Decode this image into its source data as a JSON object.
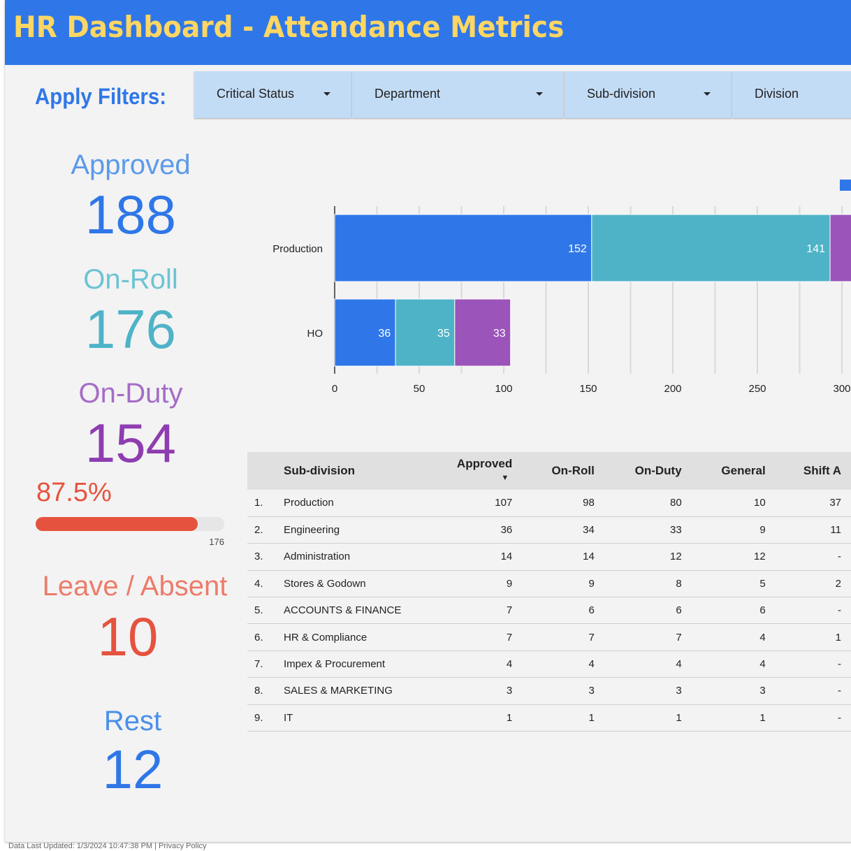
{
  "header": {
    "title": "HR Dashboard - Attendance Metrics"
  },
  "filters": {
    "label": "Apply Filters:",
    "items": [
      {
        "label": "Critical Status"
      },
      {
        "label": "Department"
      },
      {
        "label": "Sub-division"
      },
      {
        "label": "Division"
      }
    ]
  },
  "kpis": {
    "approved": {
      "label": "Approved",
      "value": "188",
      "color": "#5c9ae9",
      "value_color": "#2f77e8"
    },
    "onroll": {
      "label": "On-Roll",
      "value": "176",
      "color": "#6cc4d3",
      "value_color": "#4fb3c8"
    },
    "onduty": {
      "label": "On-Duty",
      "value": "154",
      "color": "#a56cc7",
      "value_color": "#8e3cb0"
    },
    "progress": {
      "percent_label": "87.5%",
      "fraction": 0.875,
      "max_label": "176"
    },
    "leave": {
      "label": "Leave / Absent",
      "value": "10",
      "color": "#ed7b6a",
      "value_color": "#e5533f"
    },
    "rest": {
      "label": "Rest",
      "value": "12",
      "color": "#4a8fe9",
      "value_color": "#2f77e8"
    }
  },
  "chart_data": {
    "type": "bar",
    "orientation": "horizontal",
    "stacked": true,
    "categories": [
      "Production",
      "HO"
    ],
    "series": [
      {
        "color": "#2f77e8",
        "values": [
          152,
          36
        ]
      },
      {
        "color": "#4fb3c8",
        "values": [
          141,
          35
        ]
      },
      {
        "color": "#9b54b9",
        "values": [
          null,
          33
        ]
      }
    ],
    "xticks": [
      "0",
      "50",
      "100",
      "150",
      "200",
      "250",
      "300"
    ],
    "xlim": [
      0,
      300
    ],
    "grid": true,
    "legend": "top-right"
  },
  "table": {
    "columns": [
      "Sub-division",
      "Approved",
      "On-Roll",
      "On-Duty",
      "General",
      "Shift A"
    ],
    "sort_indicator": "▼",
    "rows": [
      [
        "1.",
        "Production",
        "107",
        "98",
        "80",
        "10",
        "37"
      ],
      [
        "2.",
        "Engineering",
        "36",
        "34",
        "33",
        "9",
        "11"
      ],
      [
        "3.",
        "Administration",
        "14",
        "14",
        "12",
        "12",
        "-"
      ],
      [
        "4.",
        "Stores & Godown",
        "9",
        "9",
        "8",
        "5",
        "2"
      ],
      [
        "5.",
        "ACCOUNTS & FINANCE",
        "7",
        "6",
        "6",
        "6",
        "-"
      ],
      [
        "6.",
        "HR & Compliance",
        "7",
        "7",
        "7",
        "4",
        "1"
      ],
      [
        "7.",
        "Impex & Procurement",
        "4",
        "4",
        "4",
        "4",
        "-"
      ],
      [
        "8.",
        "SALES & MARKETING",
        "3",
        "3",
        "3",
        "3",
        "-"
      ],
      [
        "9.",
        "IT",
        "1",
        "1",
        "1",
        "1",
        "-"
      ]
    ]
  },
  "footer": {
    "text": "Data Last Updated: 1/3/2024 10:47:38 PM | Privacy Policy"
  }
}
